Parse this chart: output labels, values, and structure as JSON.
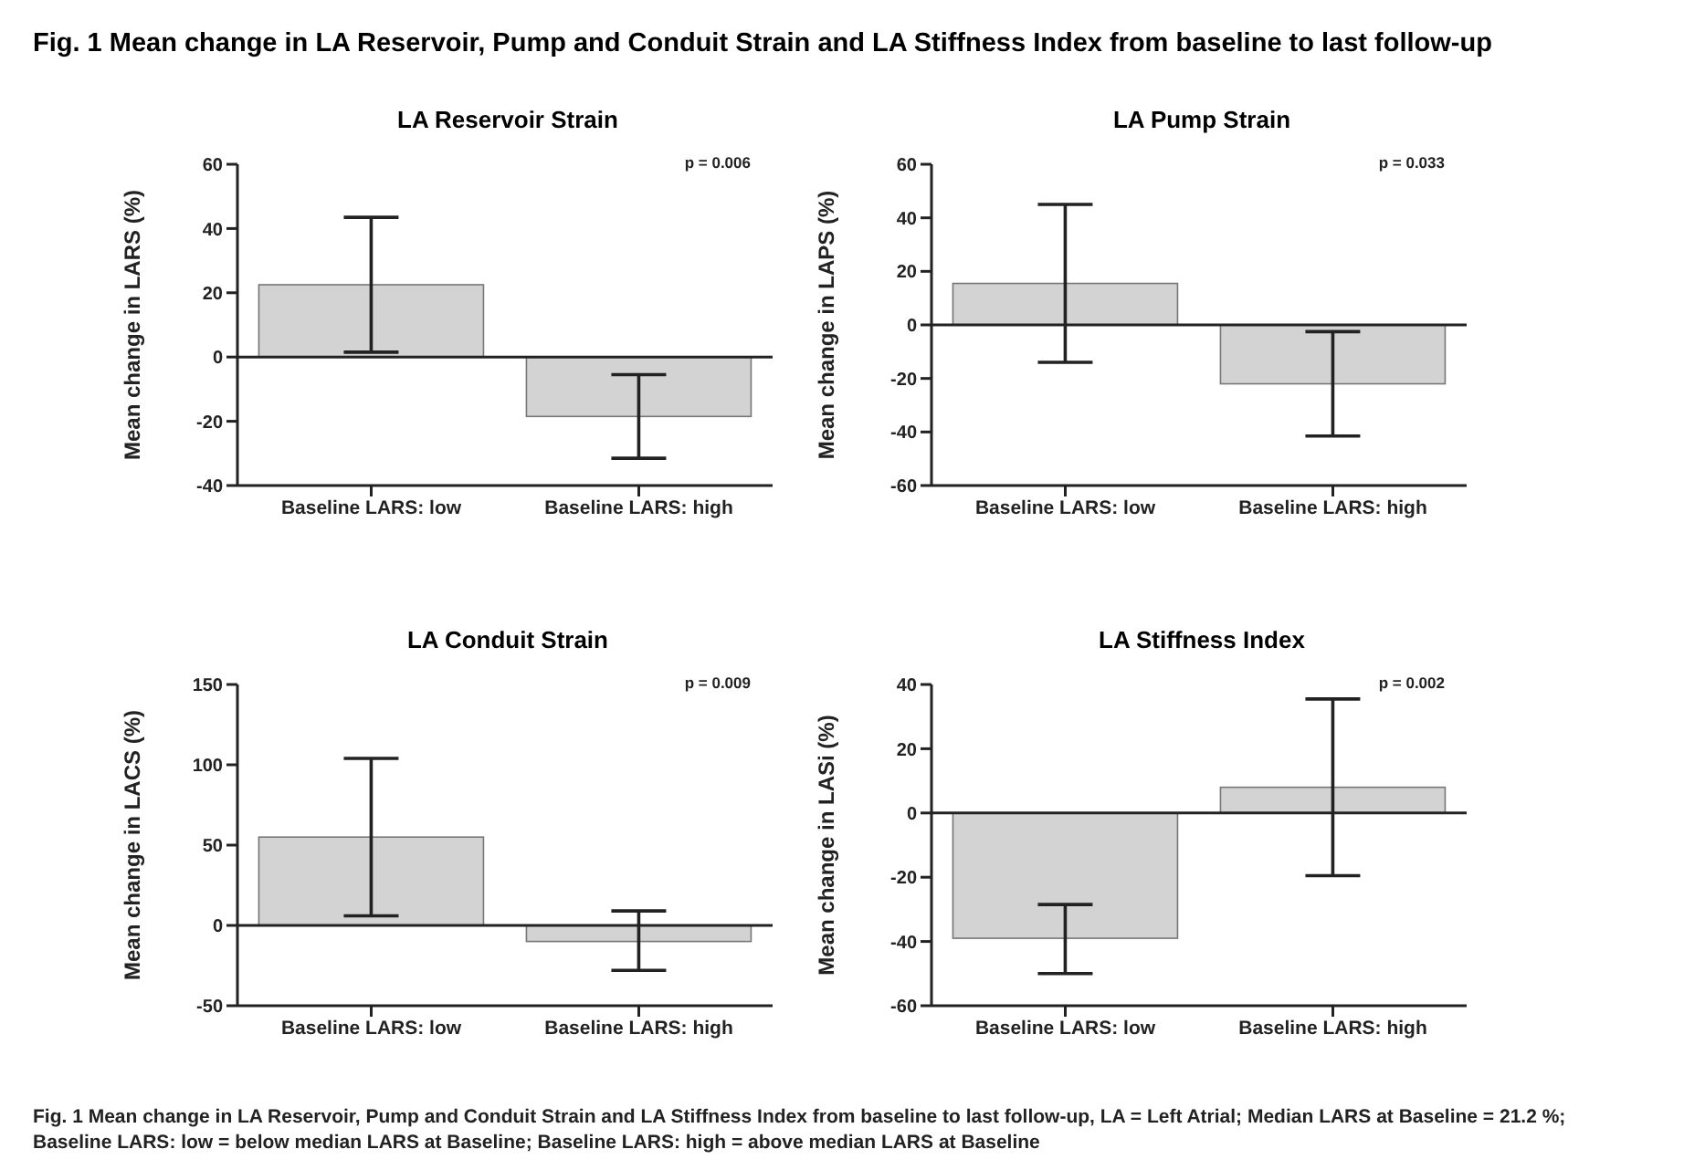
{
  "chart_data": [
    {
      "type": "other",
      "title": "Fig. 1 Mean change in LA Reservoir, Pump and Conduit Strain and LA Stiffness Index from baseline to last follow-up"
    },
    {
      "type": "bar",
      "title": "LA Reservoir Strain",
      "ylabel": "Mean change in LARS (%)",
      "categories": [
        "Baseline LARS: low",
        "Baseline LARS: high"
      ],
      "values": [
        22.5,
        -18.5
      ],
      "errors": [
        [
          1.5,
          43.5
        ],
        [
          -31.5,
          -5.5
        ]
      ],
      "color": "#d3d3d3",
      "ylim": [
        -40,
        60
      ],
      "yticks": [
        -40,
        -20,
        0,
        20,
        40,
        60
      ],
      "annotations": [
        "p = 0.006"
      ]
    },
    {
      "type": "bar",
      "title": "LA Pump Strain",
      "ylabel": "Mean change in LAPS (%)",
      "categories": [
        "Baseline LARS: low",
        "Baseline LARS: high"
      ],
      "values": [
        15.5,
        -22
      ],
      "errors": [
        [
          -14,
          45
        ],
        [
          -41.5,
          -2.5
        ]
      ],
      "color": "#d3d3d3",
      "ylim": [
        -60,
        60
      ],
      "yticks": [
        -60,
        -40,
        -20,
        0,
        20,
        40,
        60
      ],
      "annotations": [
        "p = 0.033"
      ]
    },
    {
      "type": "bar",
      "title": "LA Conduit Strain",
      "ylabel": "Mean change in LACS (%)",
      "categories": [
        "Baseline LARS: low",
        "Baseline LARS: high"
      ],
      "values": [
        55,
        -10
      ],
      "errors": [
        [
          6,
          104
        ],
        [
          -28,
          9
        ]
      ],
      "color": "#d3d3d3",
      "ylim": [
        -50,
        150
      ],
      "yticks": [
        -50,
        0,
        50,
        100,
        150
      ],
      "annotations": [
        "p = 0.009"
      ]
    },
    {
      "type": "bar",
      "title": "LA Stiffness Index",
      "ylabel": "Mean change in LASi (%)",
      "categories": [
        "Baseline LARS: low",
        "Baseline LARS: high"
      ],
      "values": [
        -39,
        8
      ],
      "errors": [
        [
          -50,
          -28.5
        ],
        [
          -19.5,
          35.5
        ]
      ],
      "color": "#d3d3d3",
      "ylim": [
        -60,
        40
      ],
      "yticks": [
        -60,
        -40,
        -20,
        0,
        20,
        40
      ],
      "annotations": [
        "p = 0.002",
        "Fig. 1 Mean change in LA Reservoir, Pump and Conduit Strain and LA Stiffness Index from baseline to last follow-up, LA = Left Atrial; Median LARS at Baseline = 21.2 %; Baseline LARS: low = below median LARS at Baseline; Baseline LARS: high = above median LARS at Baseline"
      ]
    }
  ]
}
